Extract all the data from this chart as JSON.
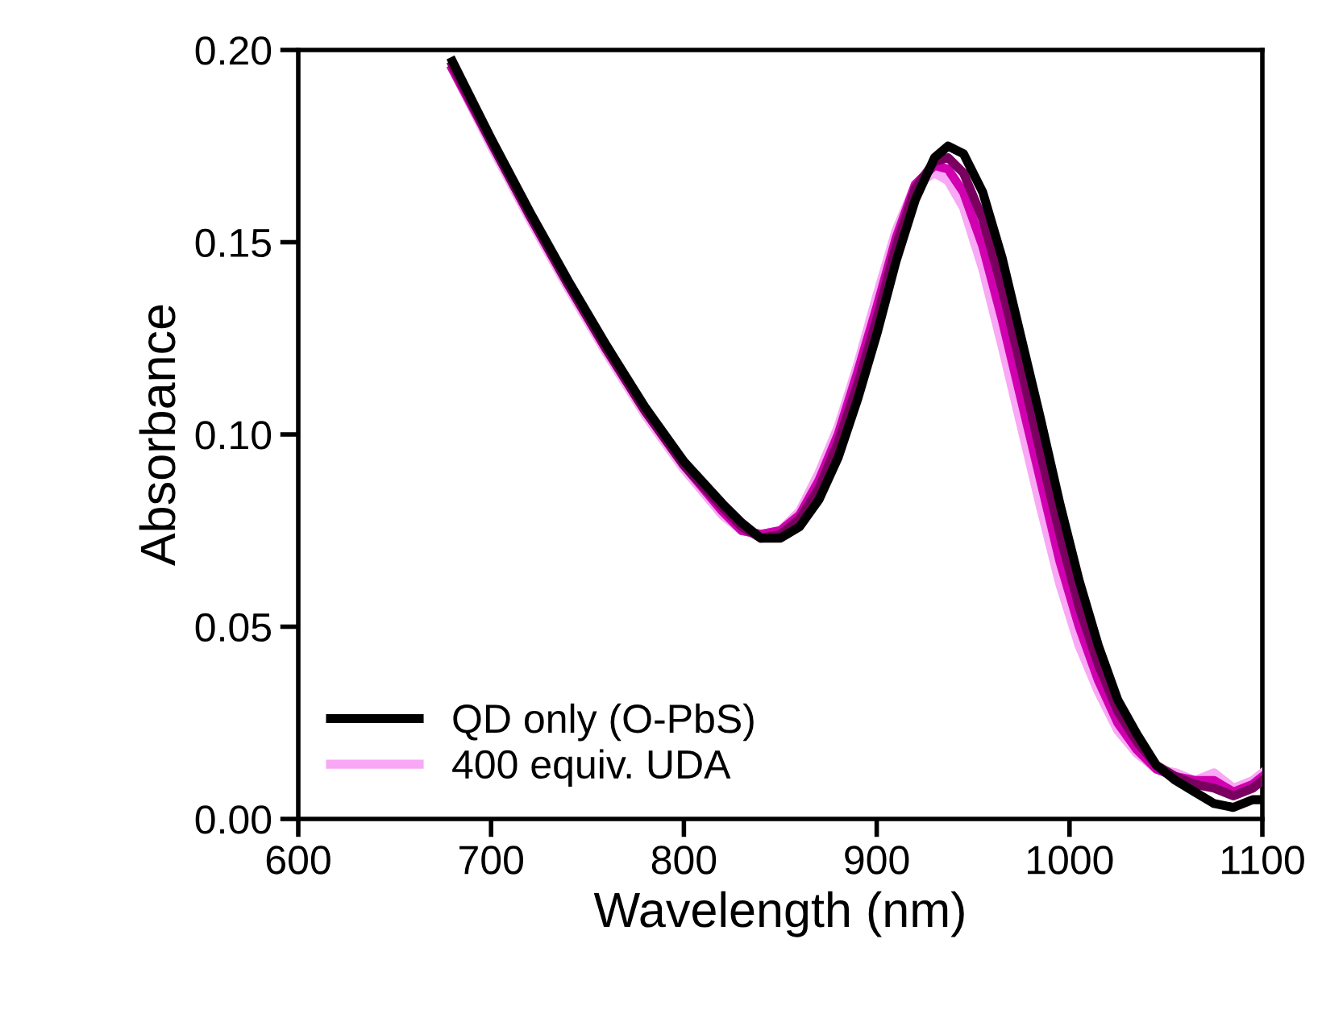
{
  "chart_data": {
    "type": "line",
    "xlabel": "Wavelength (nm)",
    "ylabel": "Absorbance",
    "xlim": [
      600,
      1100
    ],
    "ylim": [
      0,
      0.2
    ],
    "xticks": [
      600,
      700,
      800,
      900,
      1000,
      1100
    ],
    "yticks": [
      {
        "value": 0,
        "label": "0.00"
      },
      {
        "value": 0.05,
        "label": "0.05"
      },
      {
        "value": 0.1,
        "label": "0.10"
      },
      {
        "value": 0.15,
        "label": "0.15"
      },
      {
        "value": 0.2,
        "label": "0.20"
      }
    ],
    "grid": false,
    "legend": "bottom left",
    "marker": "none",
    "line_style": "solid",
    "x": [
      680,
      700,
      720,
      740,
      760,
      780,
      800,
      820,
      830,
      840,
      850,
      860,
      870,
      880,
      890,
      900,
      910,
      920,
      930,
      937,
      945,
      955,
      965,
      975,
      985,
      995,
      1005,
      1015,
      1025,
      1035,
      1045,
      1055,
      1065,
      1075,
      1085,
      1095,
      1100
    ],
    "series": [
      {
        "name": "QD only (O-PbS)",
        "color": "#000000",
        "values": [
          0.197,
          0.177,
          0.158,
          0.14,
          0.123,
          0.107,
          0.093,
          0.082,
          0.077,
          0.073,
          0.073,
          0.076,
          0.083,
          0.094,
          0.109,
          0.126,
          0.145,
          0.161,
          0.172,
          0.175,
          0.173,
          0.163,
          0.146,
          0.125,
          0.104,
          0.082,
          0.062,
          0.045,
          0.031,
          0.022,
          0.014,
          0.01,
          0.007,
          0.004,
          0.003,
          0.005,
          0.005
        ]
      },
      {
        "color": "#7a0060",
        "values": [
          0.196,
          0.176,
          0.157,
          0.139,
          0.122,
          0.106,
          0.092,
          0.081,
          0.076,
          0.073,
          0.074,
          0.078,
          0.086,
          0.098,
          0.113,
          0.13,
          0.149,
          0.164,
          0.171,
          0.172,
          0.168,
          0.156,
          0.138,
          0.117,
          0.095,
          0.074,
          0.055,
          0.04,
          0.028,
          0.02,
          0.014,
          0.011,
          0.009,
          0.008,
          0.006,
          0.008,
          0.01
        ]
      },
      {
        "color": "#d000b0",
        "values": [
          0.195,
          0.176,
          0.157,
          0.139,
          0.122,
          0.106,
          0.092,
          0.08,
          0.075,
          0.074,
          0.075,
          0.079,
          0.088,
          0.1,
          0.116,
          0.133,
          0.151,
          0.165,
          0.17,
          0.169,
          0.163,
          0.149,
          0.13,
          0.109,
          0.088,
          0.067,
          0.05,
          0.036,
          0.025,
          0.018,
          0.013,
          0.011,
          0.01,
          0.01,
          0.007,
          0.009,
          0.011
        ]
      },
      {
        "name": "400 equiv. UDA",
        "color": "#f8a8f4",
        "values": [
          0.195,
          0.175,
          0.156,
          0.138,
          0.121,
          0.105,
          0.091,
          0.079,
          0.075,
          0.074,
          0.075,
          0.08,
          0.09,
          0.102,
          0.118,
          0.136,
          0.153,
          0.165,
          0.168,
          0.166,
          0.159,
          0.143,
          0.123,
          0.102,
          0.081,
          0.061,
          0.045,
          0.033,
          0.023,
          0.017,
          0.013,
          0.012,
          0.01,
          0.012,
          0.008,
          0.01,
          0.012
        ]
      }
    ]
  }
}
